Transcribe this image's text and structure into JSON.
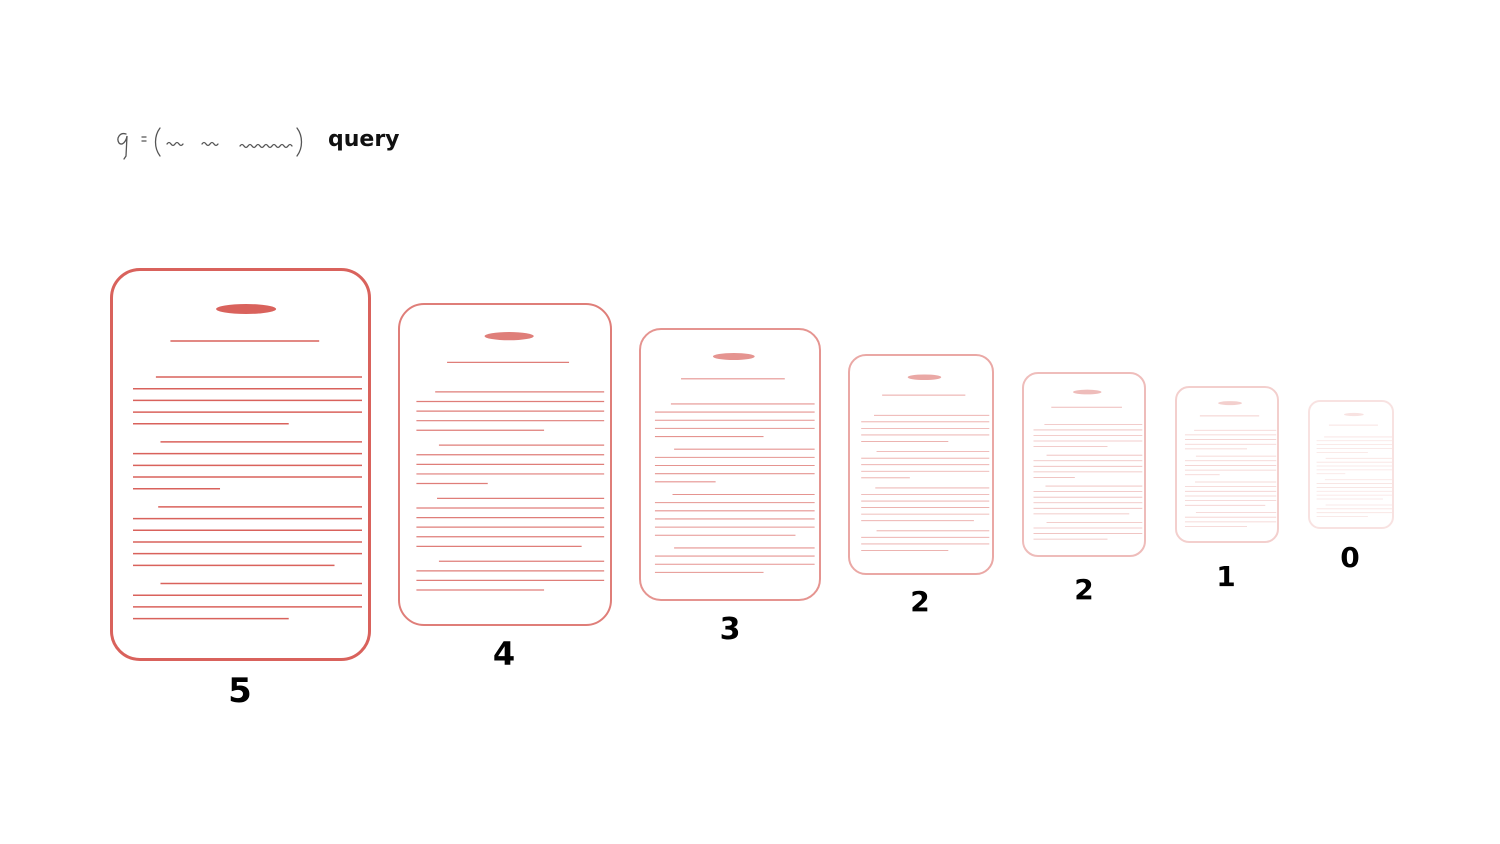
{
  "query": {
    "formula_symbol": "q",
    "label": "query"
  },
  "documents": [
    {
      "relevance": "5",
      "opacity": 1.0
    },
    {
      "relevance": "4",
      "opacity": 0.82
    },
    {
      "relevance": "3",
      "opacity": 0.68
    },
    {
      "relevance": "2",
      "opacity": 0.55
    },
    {
      "relevance": "2",
      "opacity": 0.42
    },
    {
      "relevance": "1",
      "opacity": 0.3
    },
    {
      "relevance": "0",
      "opacity": 0.18
    }
  ],
  "colors": {
    "accent": "#d9625c",
    "label": "#000000",
    "formula_ink": "#555555"
  }
}
